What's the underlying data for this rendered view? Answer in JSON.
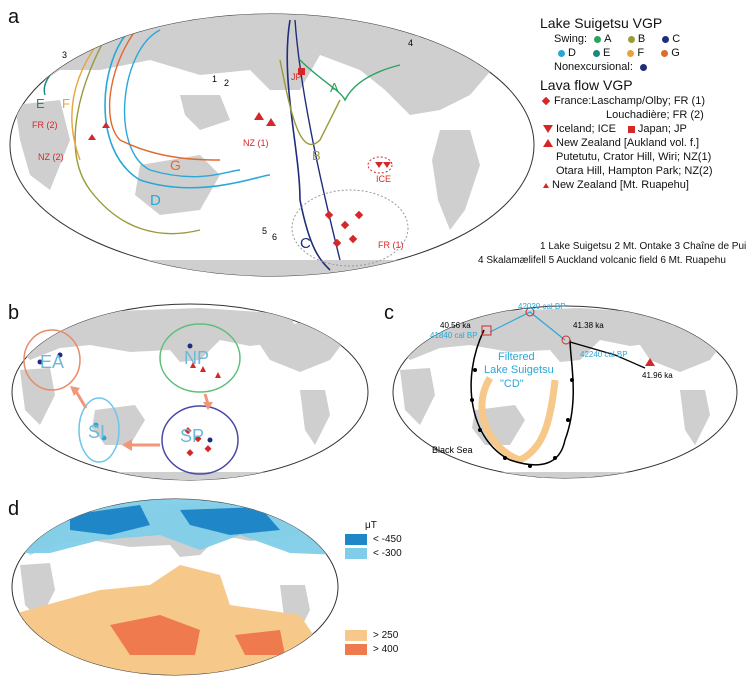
{
  "panels": {
    "a": "a",
    "b": "b",
    "c": "c",
    "d": "d"
  },
  "legend": {
    "suigetsu_title": "Lake Suigetsu VGP",
    "swing_label": "Swing:",
    "nonexcursional_label": "Nonexcursional:",
    "swings": [
      {
        "name": "A",
        "color": "#2ca25f"
      },
      {
        "name": "B",
        "color": "#9a9a3c"
      },
      {
        "name": "C",
        "color": "#1f2d7a"
      },
      {
        "name": "D",
        "color": "#29a8d8"
      },
      {
        "name": "E",
        "color": "#1a8a7a"
      },
      {
        "name": "F",
        "color": "#e8a33a"
      },
      {
        "name": "G",
        "color": "#e06a2c"
      }
    ],
    "nonexcursional_color": "#1f2d7a",
    "lava_title": "Lava flow VGP",
    "france_1": "France:Laschamp/Olby; FR (1)",
    "france_2": "Louchadière; FR (2)",
    "iceland": "Iceland; ICE",
    "japan": "Japan; JP",
    "nz_1": "New Zealand [Aukland vol. f.]",
    "nz_2": "Putetutu, Crator Hill, Wiri; NZ(1)",
    "nz_3": "Otara Hill, Hampton Park; NZ(2)",
    "nz_ruapehu": "New Zealand [Mt. Ruapehu]",
    "red": "#d62728"
  },
  "sites": {
    "row1": "1 Lake Suigetsu   2 Mt. Ontake   3 Chaîne de Pui",
    "row2": "4 Skalamælifell   5 Auckland volcanic field   6 Mt. Ruapehu"
  },
  "map_a_labels": {
    "A": "A",
    "B": "B",
    "C": "C",
    "D": "D",
    "E": "E",
    "F": "F",
    "G": "G",
    "JP": "JP",
    "FR2": "FR (2)",
    "NZ2": "NZ (2)",
    "NZ1": "NZ (1)",
    "ICE": "ICE",
    "FR1": "FR (1)",
    "s1": "1",
    "s2": "2",
    "s3": "3",
    "s4": "4",
    "s5": "5",
    "s6": "6"
  },
  "map_b_labels": {
    "EA": "EA",
    "NP": "NP",
    "SI": "SI",
    "SP": "SP"
  },
  "map_c_labels": {
    "t42020": "42020 cal BP",
    "t4056": "40.56 ka",
    "t41840": "41840 cal BP",
    "t4138": "41.38 ka",
    "t42240": "42240 cal BP",
    "t4196": "41.96 ka",
    "filtered1": "Filtered",
    "filtered2": "Lake Suigetsu",
    "filtered3": "\"CD\"",
    "blacksea": "Black Sea"
  },
  "map_d_key": {
    "unit": "μT",
    "neg450": "< -450",
    "neg300": "< -300",
    "pos250": "> 250",
    "pos400": "> 400",
    "c_neg450": "#1f86c8",
    "c_neg300": "#7fcde8",
    "c_pos250": "#f6c98a",
    "c_pos400": "#ee7a4e"
  }
}
